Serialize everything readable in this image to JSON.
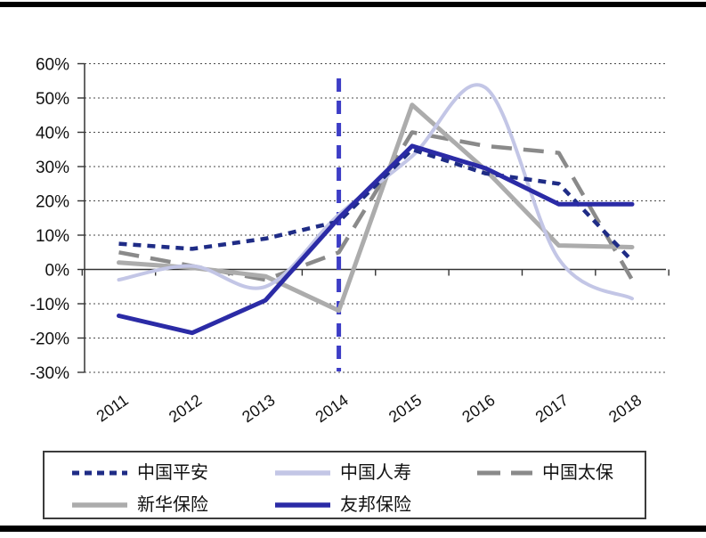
{
  "page": {
    "background_color": "#ffffff",
    "top_rule_color": "#000000",
    "bottom_rule_color": "#000000"
  },
  "chart_data": {
    "type": "line",
    "title": "",
    "xlabel": "",
    "ylabel": "",
    "categories": [
      "2011",
      "2012",
      "2013",
      "2014",
      "2015",
      "2016",
      "2017",
      "2018"
    ],
    "series": [
      {
        "name": "中国平安",
        "color": "#1F2C86",
        "line_style": "dashed",
        "smooth": false,
        "width": 4.5,
        "values": [
          7.5,
          6,
          9,
          14,
          35,
          28,
          25,
          2.5
        ]
      },
      {
        "name": "中国人寿",
        "color": "#C3C6E6",
        "line_style": "solid",
        "smooth": true,
        "width": 4,
        "values": [
          -3,
          1,
          -5,
          16,
          33,
          53,
          3,
          -8.5
        ]
      },
      {
        "name": "中国太保",
        "color": "#8A8A8A",
        "line_style": "long-dash",
        "smooth": false,
        "width": 4.5,
        "values": [
          5,
          1,
          -3,
          5,
          40,
          36,
          34,
          -3
        ]
      },
      {
        "name": "新华保险",
        "color": "#ACACAC",
        "line_style": "solid",
        "smooth": false,
        "width": 5,
        "values": [
          2,
          0.5,
          -2,
          -12,
          48,
          29,
          7,
          6.5
        ]
      },
      {
        "name": "友邦保险",
        "color": "#2B2BA6",
        "line_style": "solid",
        "smooth": false,
        "width": 5,
        "values": [
          -13.5,
          -18.5,
          -9,
          15,
          36,
          29.5,
          19,
          19
        ]
      }
    ],
    "ylim": [
      -30,
      60
    ],
    "ytick_step": 10,
    "ytick_labels": [
      "60%",
      "50%",
      "40%",
      "30%",
      "20%",
      "10%",
      "0%",
      "-10%",
      "-20%",
      "-30%"
    ],
    "grid": "horizontal-dotted",
    "legend_position": "bottom-boxed",
    "annotations": [
      {
        "type": "vline",
        "at_category": "2014",
        "color": "#3D3DC6",
        "style": "dashed",
        "width": 5
      }
    ]
  }
}
